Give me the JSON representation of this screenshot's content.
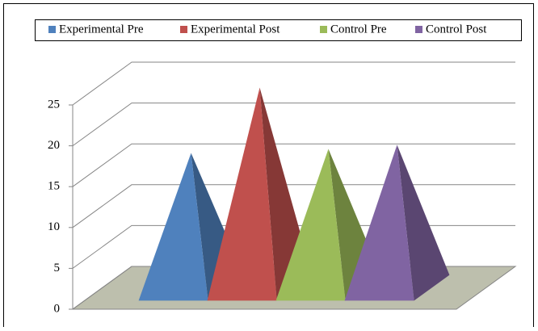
{
  "chart_data": {
    "type": "pyramid",
    "series": [
      {
        "name": "Experimental Pre",
        "color": "#4f81bd",
        "values": [
          16.5
        ]
      },
      {
        "name": "Experimental Post",
        "color": "#c0504d",
        "values": [
          24.5
        ]
      },
      {
        "name": "Control Pre",
        "color": "#9bbb59",
        "values": [
          17
        ]
      },
      {
        "name": "Control Post",
        "color": "#8064a2",
        "values": [
          17.5
        ]
      }
    ],
    "ylim": [
      0,
      25
    ],
    "yticks": [
      0,
      5,
      10,
      15,
      20,
      25
    ],
    "grid": true,
    "legend": "top"
  }
}
